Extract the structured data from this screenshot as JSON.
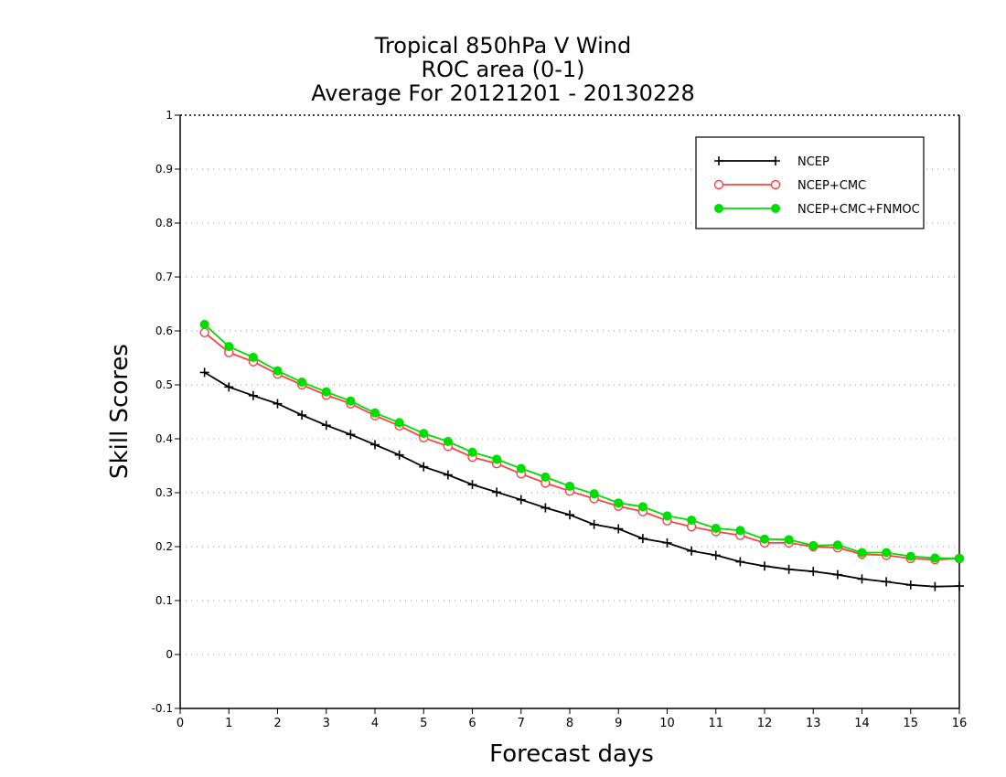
{
  "chart_data": {
    "type": "line",
    "title_lines": [
      "Tropical 850hPa V Wind",
      "ROC area (0-1)",
      "Average For 20121201 - 20130228"
    ],
    "xlabel": "Forecast days",
    "ylabel": "Skill Scores",
    "xlim": [
      0,
      16
    ],
    "ylim": [
      -0.1,
      1
    ],
    "xticks": [
      0,
      1,
      2,
      3,
      4,
      5,
      6,
      7,
      8,
      9,
      10,
      11,
      12,
      13,
      14,
      15,
      16
    ],
    "yticks": [
      -0.1,
      0,
      0.1,
      0.2,
      0.3,
      0.4,
      0.5,
      0.6,
      0.7,
      0.8,
      0.9,
      1
    ],
    "ytick_labels": [
      "-0.1",
      "0",
      "0.1",
      "0.2",
      "0.3",
      "0.4",
      "0.5",
      "0.6",
      "0.7",
      "0.8",
      "0.9",
      "1"
    ],
    "grid": "horizontal dotted",
    "legend_position": "top-right",
    "x": [
      0.5,
      1,
      1.5,
      2,
      2.5,
      3,
      3.5,
      4,
      4.5,
      5,
      5.5,
      6,
      6.5,
      7,
      7.5,
      8,
      8.5,
      9,
      9.5,
      10,
      10.5,
      11,
      11.5,
      12,
      12.5,
      13,
      13.5,
      14,
      14.5,
      15,
      15.5,
      16
    ],
    "series": [
      {
        "name": "NCEP",
        "color": "#000000",
        "marker": "plus",
        "values": [
          0.523,
          0.496,
          0.48,
          0.465,
          0.444,
          0.425,
          0.408,
          0.389,
          0.37,
          0.348,
          0.333,
          0.315,
          0.301,
          0.287,
          0.272,
          0.259,
          0.241,
          0.233,
          0.215,
          0.207,
          0.192,
          0.184,
          0.172,
          0.164,
          0.158,
          0.154,
          0.148,
          0.14,
          0.135,
          0.129,
          0.126,
          0.127
        ]
      },
      {
        "name": "NCEP+CMC",
        "color": "#ff4040",
        "marker": "open-circle",
        "values": [
          0.597,
          0.56,
          0.543,
          0.52,
          0.5,
          0.481,
          0.465,
          0.443,
          0.424,
          0.402,
          0.386,
          0.366,
          0.354,
          0.335,
          0.318,
          0.303,
          0.289,
          0.275,
          0.265,
          0.248,
          0.237,
          0.228,
          0.221,
          0.207,
          0.207,
          0.2,
          0.198,
          0.186,
          0.184,
          0.178,
          0.176,
          0.178
        ]
      },
      {
        "name": "NCEP+CMC+FNMOC",
        "color": "#00dd00",
        "marker": "filled-circle",
        "values": [
          0.612,
          0.571,
          0.551,
          0.526,
          0.505,
          0.487,
          0.47,
          0.448,
          0.43,
          0.41,
          0.395,
          0.375,
          0.362,
          0.345,
          0.329,
          0.312,
          0.298,
          0.281,
          0.274,
          0.257,
          0.249,
          0.234,
          0.23,
          0.214,
          0.213,
          0.202,
          0.203,
          0.189,
          0.189,
          0.182,
          0.179,
          0.178
        ]
      }
    ]
  }
}
